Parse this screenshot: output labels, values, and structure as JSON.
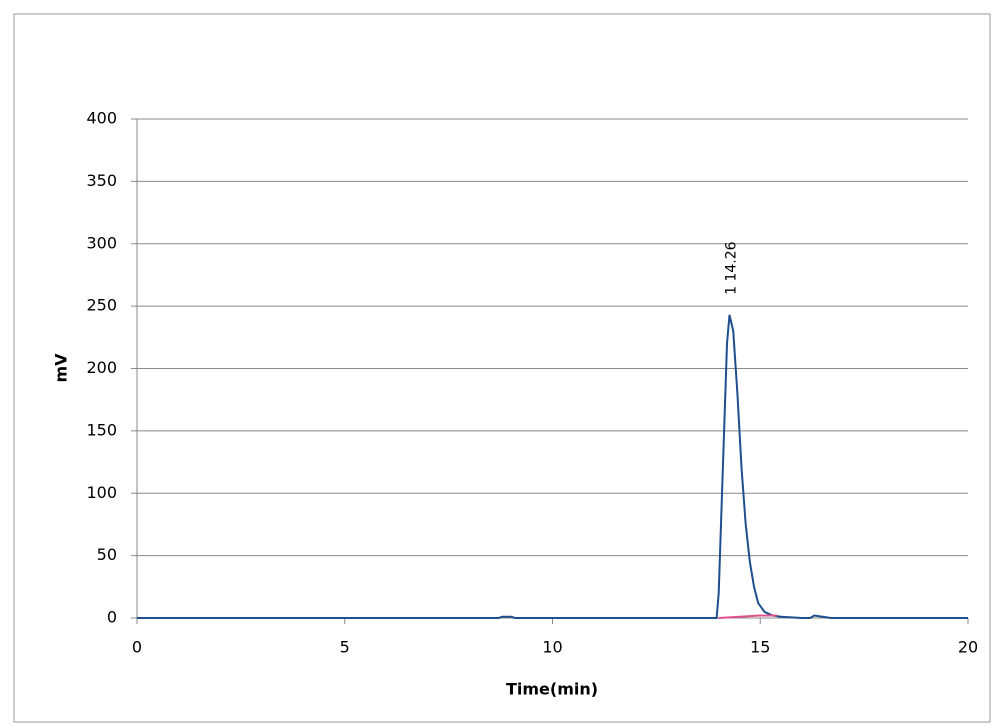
{
  "chart_data": {
    "type": "line",
    "xlabel": "Time(min)",
    "ylabel": "mV",
    "xlim": [
      0,
      20
    ],
    "xticks": [
      0,
      5,
      10,
      15,
      20
    ],
    "ylim": [
      0,
      400
    ],
    "yticks": [
      0,
      50,
      100,
      150,
      200,
      250,
      300,
      350,
      400
    ],
    "grid": true,
    "series": [
      {
        "color": "#1f4e8c",
        "x": [
          0,
          8.7,
          8.8,
          9.0,
          9.1,
          13.9,
          13.95,
          14.0,
          14.1,
          14.2,
          14.26,
          14.35,
          14.45,
          14.55,
          14.65,
          14.75,
          14.85,
          14.95,
          15.1,
          15.3,
          15.5,
          16.0,
          16.2,
          16.3,
          16.5,
          16.7,
          20
        ],
        "values": [
          0,
          0,
          1,
          1,
          0,
          0,
          0,
          20,
          120,
          220,
          243,
          230,
          180,
          120,
          75,
          45,
          25,
          12,
          5,
          2,
          1,
          0,
          0,
          2,
          1,
          0,
          0
        ]
      },
      {
        "color": "#e0508c",
        "x": [
          14.0,
          14.5,
          15.0,
          15.4
        ],
        "values": [
          0,
          1,
          2,
          2
        ]
      }
    ],
    "annotations": [
      {
        "text": "1 14.26",
        "x": 14.26,
        "y": 243
      }
    ]
  }
}
